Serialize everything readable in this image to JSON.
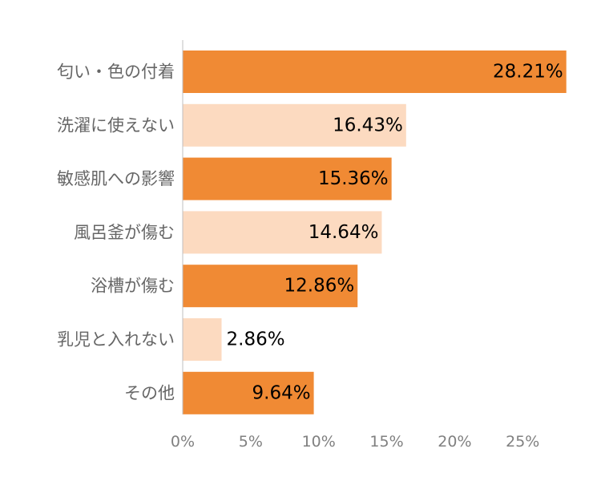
{
  "chart_data": {
    "type": "bar",
    "orientation": "horizontal",
    "categories": [
      "匂い・色の付着",
      "洗濯に使えない",
      "敏感肌への影響",
      "風呂釜が傷む",
      "浴槽が傷む",
      "乳児と入れない",
      "その他"
    ],
    "values": [
      28.21,
      16.43,
      15.36,
      14.64,
      12.86,
      2.86,
      9.64
    ],
    "value_labels": [
      "28.21%",
      "16.43%",
      "15.36%",
      "14.64%",
      "12.86%",
      "2.86%",
      "9.64%"
    ],
    "xlim": [
      0,
      30
    ],
    "x_ticks": [
      0,
      5,
      10,
      15,
      20,
      25
    ],
    "x_tick_labels": [
      "0%",
      "5%",
      "10%",
      "15%",
      "20%",
      "25%"
    ],
    "colors": [
      "#f08a34",
      "#fcdac0",
      "#f08a34",
      "#fcdac0",
      "#f08a34",
      "#fcdac0",
      "#f08a34"
    ],
    "grid": false,
    "legend": "none",
    "title": "",
    "xlabel": "",
    "ylabel": ""
  }
}
